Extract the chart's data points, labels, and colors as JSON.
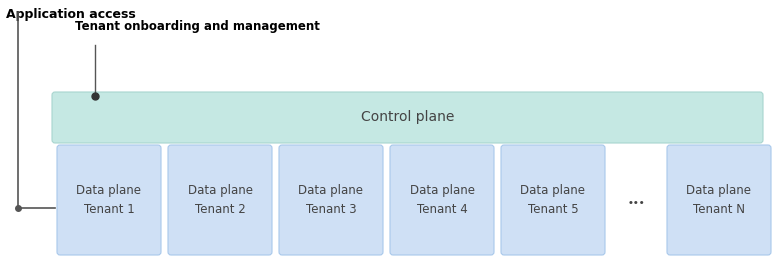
{
  "title_app": "Application access",
  "title_tenant": "Tenant onboarding and management",
  "control_plane_label": "Control plane",
  "control_plane_color": "#c5e8e3",
  "control_plane_edge_color": "#a8d5cf",
  "data_plane_color": "#cfe0f5",
  "data_plane_edge_color": "#a8c8eb",
  "data_planes": [
    "Data plane\nTenant 1",
    "Data plane\nTenant 2",
    "Data plane\nTenant 3",
    "Data plane\nTenant 4",
    "Data plane\nTenant 5",
    "Data plane\nTenant N"
  ],
  "dots_label": "...",
  "background_color": "#ffffff",
  "text_color": "#444444",
  "line_color": "#555555"
}
